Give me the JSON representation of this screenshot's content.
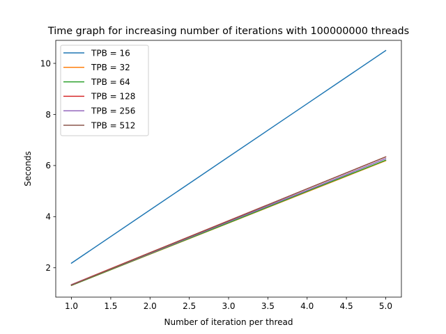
{
  "chart_data": {
    "type": "line",
    "title": "Time graph for increasing number of iterations with 100000000 threads",
    "xlabel": "Number of iteration per thread",
    "ylabel": "Seconds",
    "xlim": [
      0.8,
      5.2
    ],
    "ylim": [
      0.85,
      10.9
    ],
    "xticks": [
      1.0,
      1.5,
      2.0,
      2.5,
      3.0,
      3.5,
      4.0,
      4.5,
      5.0
    ],
    "xtick_labels": [
      "1.0",
      "1.5",
      "2.0",
      "2.5",
      "3.0",
      "3.5",
      "4.0",
      "4.5",
      "5.0"
    ],
    "yticks": [
      2,
      4,
      6,
      8,
      10
    ],
    "ytick_labels": [
      "2",
      "4",
      "6",
      "8",
      "10"
    ],
    "grid": false,
    "legend_position": "top-left",
    "x": [
      1,
      2,
      3,
      4,
      5
    ],
    "series": [
      {
        "name": "TPB = 16",
        "color": "#1f77b4",
        "values": [
          2.18,
          4.26,
          6.34,
          8.42,
          10.5
        ]
      },
      {
        "name": "TPB = 32",
        "color": "#ff7f0e",
        "values": [
          1.31,
          2.53,
          3.75,
          4.97,
          6.19
        ]
      },
      {
        "name": "TPB = 64",
        "color": "#2ca02c",
        "values": [
          1.31,
          2.54,
          3.76,
          4.99,
          6.21
        ]
      },
      {
        "name": "TPB = 128",
        "color": "#d62728",
        "values": [
          1.34,
          2.59,
          3.84,
          5.09,
          6.34
        ]
      },
      {
        "name": "TPB = 256",
        "color": "#9467bd",
        "values": [
          1.33,
          2.56,
          3.8,
          5.03,
          6.27
        ]
      },
      {
        "name": "TPB = 512",
        "color": "#8c564b",
        "values": [
          1.32,
          2.58,
          3.83,
          5.09,
          6.34
        ]
      }
    ]
  }
}
